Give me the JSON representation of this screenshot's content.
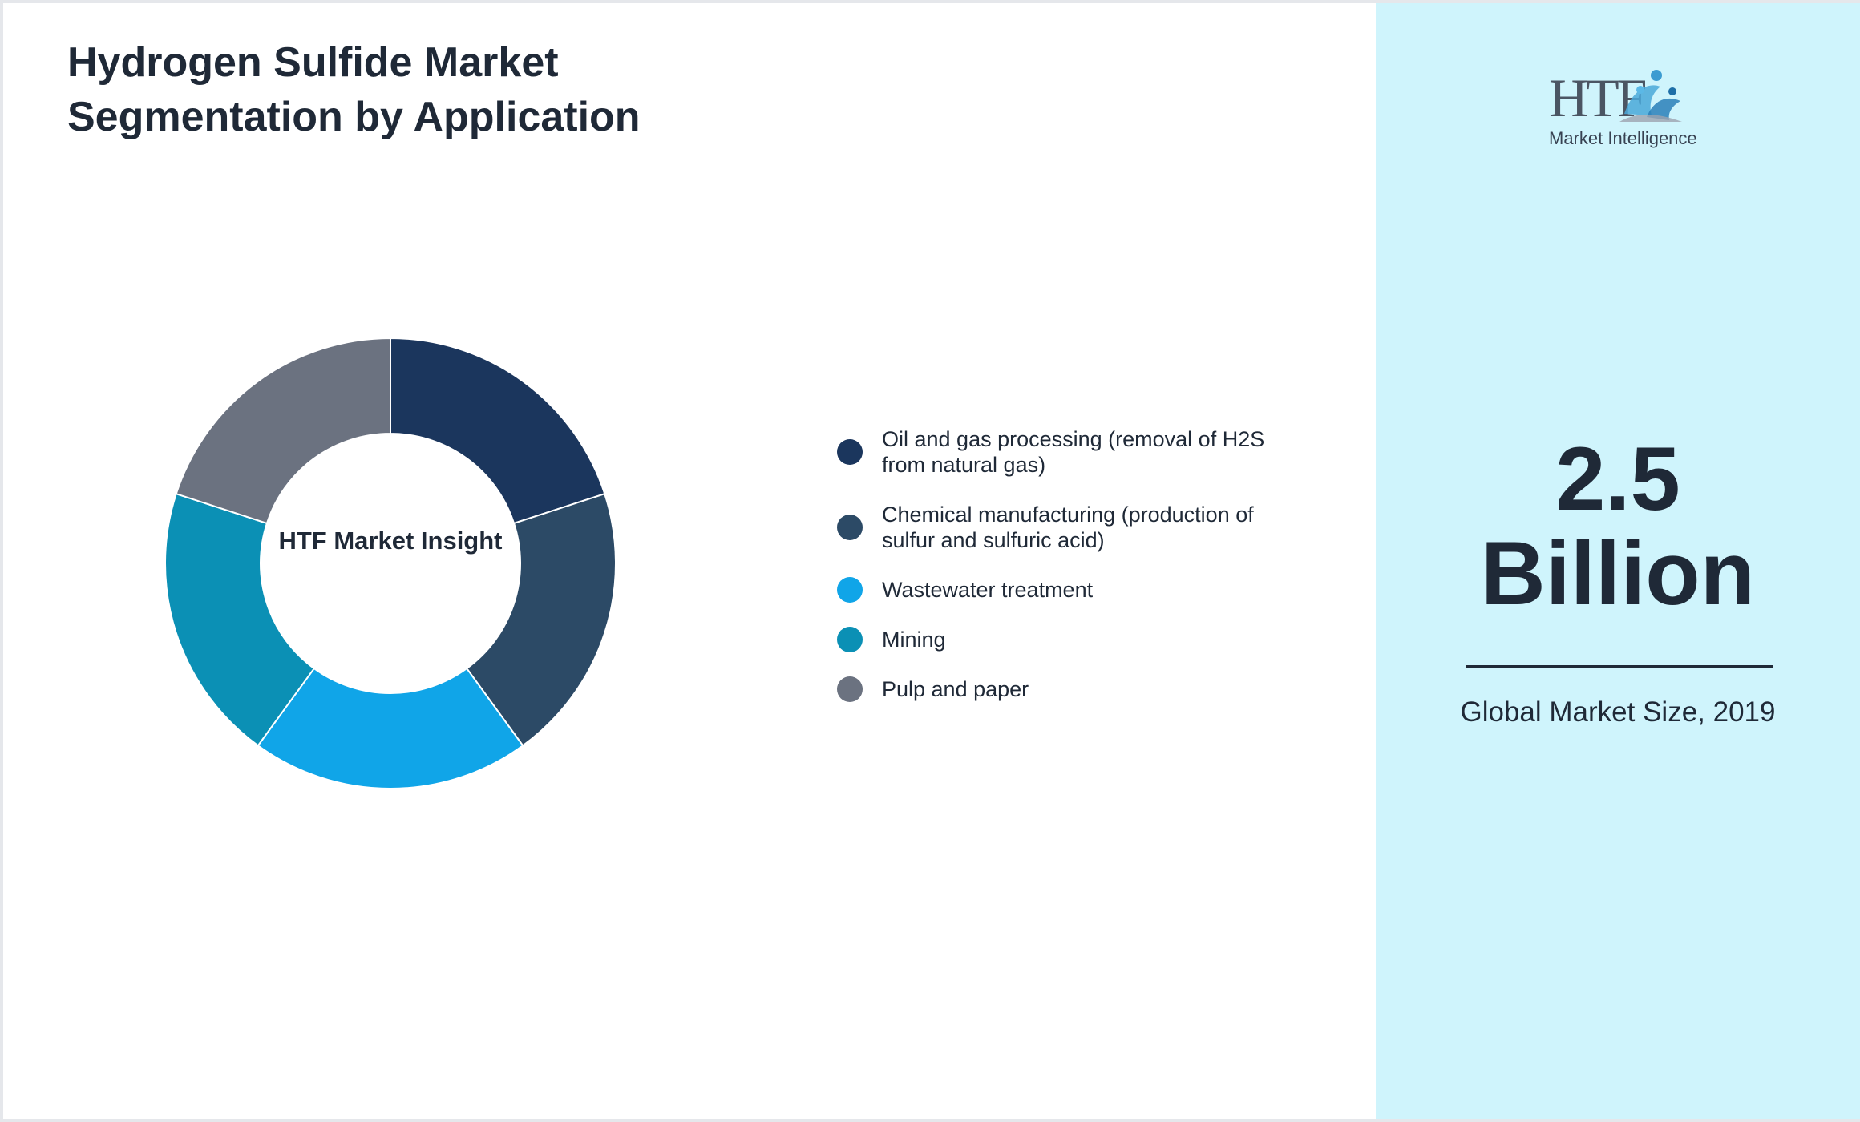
{
  "page": {
    "title": "Hydrogen Sulfide Market Segmentation by Application"
  },
  "chart_data": {
    "type": "pie",
    "style": "donut",
    "title": "Hydrogen Sulfide Market Segmentation by Application",
    "center_label": "HTF Market Insight",
    "slices": [
      {
        "label": "Oil and gas processing (removal of H2S from natural gas)",
        "value": 20,
        "color": "#1b365d"
      },
      {
        "label": "Chemical manufacturing (production of sulfur and sulfuric acid)",
        "value": 20,
        "color": "#2c4a66"
      },
      {
        "label": "Wastewater treatment",
        "value": 20,
        "color": "#10a5e8"
      },
      {
        "label": "Mining",
        "value": 20,
        "color": "#0b90b5"
      },
      {
        "label": "Pulp and paper",
        "value": 20,
        "color": "#6b7280"
      }
    ],
    "legend_position": "right"
  },
  "sidebar": {
    "logo_text": "HTF",
    "logo_subtitle": "Market Intelligence",
    "value": "2.5",
    "unit": "Billion",
    "caption": "Global Market Size, 2019",
    "background": "#cff4fc"
  }
}
